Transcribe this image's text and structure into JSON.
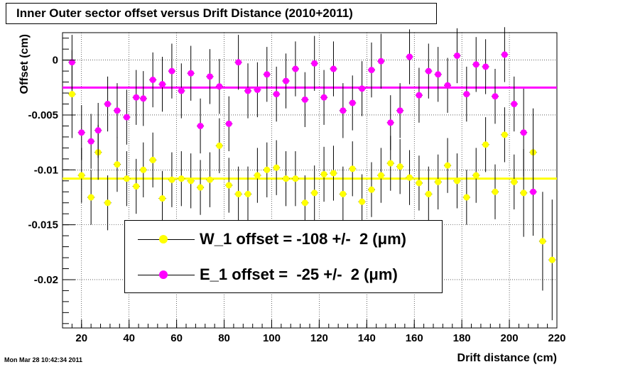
{
  "chart_data": {
    "type": "scatter",
    "title": "Inner Outer sector offset versus Drift Distance (2010+2011)",
    "xlabel": "Drift distance (cm)",
    "ylabel": "Offset (cm)",
    "xlim": [
      12,
      220
    ],
    "ylim": [
      -0.0244,
      0.0025
    ],
    "x_ticks": [
      20,
      40,
      60,
      80,
      100,
      120,
      140,
      160,
      180,
      200,
      220
    ],
    "y_ticks": [
      0,
      -0.005,
      -0.01,
      -0.015,
      -0.02
    ],
    "x_tick_labels": [
      "20",
      "40",
      "60",
      "80",
      "100",
      "120",
      "140",
      "160",
      "180",
      "200",
      "220"
    ],
    "y_tick_labels": [
      "0",
      "-0.005",
      "-0.01",
      "-0.015",
      "-0.02"
    ],
    "grid": true,
    "x": [
      16,
      20,
      24,
      27,
      31,
      35,
      39,
      43,
      46,
      50,
      54,
      58,
      62,
      66,
      70,
      74,
      78,
      82,
      86,
      90,
      94,
      98,
      102,
      106,
      110,
      114,
      118,
      122,
      126,
      130,
      134,
      138,
      142,
      146,
      150,
      154,
      158,
      162,
      166,
      170,
      174,
      178,
      182,
      186,
      190,
      194,
      198,
      202,
      206,
      210
    ],
    "series": [
      {
        "name": "W_1",
        "color": "#ffff00",
        "fit_value": -0.0108,
        "legend_label": "W_1 offset = -108 +/-  2 (μm)",
        "y": [
          -0.0031,
          -0.0105,
          -0.0125,
          -0.0084,
          -0.013,
          -0.0095,
          -0.0108,
          -0.0115,
          -0.01,
          -0.0091,
          -0.0126,
          -0.0109,
          -0.0108,
          -0.011,
          -0.0116,
          -0.0109,
          -0.0078,
          -0.0114,
          -0.0122,
          -0.0122,
          -0.0105,
          -0.01,
          -0.0098,
          -0.0108,
          -0.0108,
          -0.013,
          -0.0121,
          -0.0104,
          -0.0103,
          -0.0122,
          -0.0099,
          -0.0129,
          -0.0118,
          -0.0105,
          -0.0094,
          -0.0097,
          -0.0107,
          -0.0112,
          -0.0122,
          -0.0111,
          -0.0096,
          -0.011,
          -0.0125,
          -0.0105,
          -0.0077,
          -0.012,
          -0.0068,
          -0.0111,
          -0.0121,
          -0.0084
        ],
        "err": [
          0.004,
          0.0025,
          0.0025,
          0.0025,
          0.0025,
          0.0025,
          0.0025,
          0.0025,
          0.0025,
          0.0025,
          0.0025,
          0.0025,
          0.0025,
          0.0025,
          0.0025,
          0.0025,
          0.0025,
          0.0025,
          0.0025,
          0.0025,
          0.0025,
          0.0025,
          0.0025,
          0.0025,
          0.0025,
          0.0025,
          0.0025,
          0.0025,
          0.0025,
          0.0025,
          0.0025,
          0.0025,
          0.0025,
          0.0025,
          0.0025,
          0.0025,
          0.0025,
          0.0025,
          0.0025,
          0.0025,
          0.0025,
          0.0025,
          0.0025,
          0.0025,
          0.0025,
          0.0025,
          0.0025,
          0.0025,
          0.004,
          0.004
        ]
      },
      {
        "name": "E_1",
        "color": "#ff00ff",
        "fit_value": -0.0025,
        "legend_label": "E_1 offset =  -25 +/-  2 (μm)",
        "y": [
          -0.0002,
          -0.0066,
          -0.0074,
          -0.0064,
          -0.004,
          -0.0046,
          -0.0052,
          -0.0034,
          -0.0035,
          -0.0018,
          -0.0022,
          -0.001,
          -0.0028,
          -0.0012,
          -0.006,
          -0.0015,
          -0.0024,
          -0.0058,
          -0.0002,
          -0.0028,
          -0.0027,
          -0.0013,
          -0.0031,
          -0.0019,
          -0.0008,
          -0.0036,
          -0.0003,
          -0.0034,
          -0.0008,
          -0.0046,
          -0.0039,
          -0.0026,
          -0.0009,
          -0.0001,
          -0.0057,
          -0.0046,
          0.0003,
          -0.0032,
          -0.001,
          -0.0013,
          -0.0023,
          0.0004,
          -0.0031,
          -0.0004,
          -0.0006,
          -0.0033,
          0.0005,
          -0.004,
          -0.0066,
          -0.012
        ],
        "err": [
          0.0025,
          0.0025,
          0.0025,
          0.0025,
          0.0025,
          0.0025,
          0.0025,
          0.0025,
          0.0025,
          0.0025,
          0.0025,
          0.0025,
          0.0025,
          0.0025,
          0.0025,
          0.0025,
          0.0025,
          0.0025,
          0.0025,
          0.0025,
          0.0025,
          0.0025,
          0.0025,
          0.0025,
          0.0025,
          0.0025,
          0.0025,
          0.0025,
          0.0025,
          0.0025,
          0.0025,
          0.0025,
          0.0025,
          0.0025,
          0.0025,
          0.0025,
          0.0025,
          0.0025,
          0.0025,
          0.0025,
          0.0025,
          0.0025,
          0.0025,
          0.0025,
          0.0025,
          0.0025,
          0.0025,
          0.0025,
          0.004,
          0.004
        ]
      }
    ],
    "extra_points": {
      "color": "#ffff00",
      "x": [
        214,
        218
      ],
      "y": [
        -0.0165,
        -0.0182
      ],
      "err": [
        0.0045,
        0.0055
      ]
    },
    "legend_placement": "bottom-center"
  },
  "footer": {
    "timestamp": "Mon Mar 28 10:42:34 2011"
  }
}
